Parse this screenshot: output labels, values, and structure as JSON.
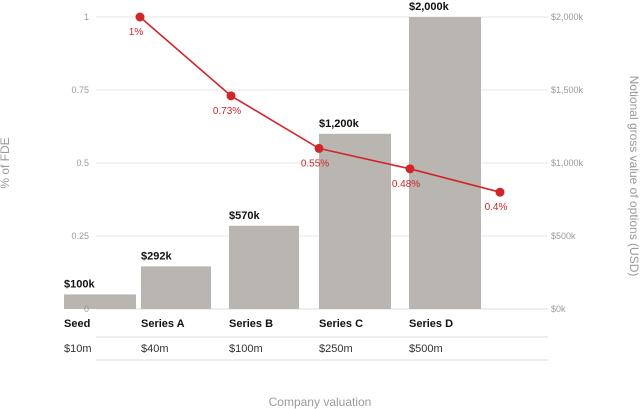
{
  "chart_data": {
    "type": "bar",
    "categories": [
      "Seed",
      "Series A",
      "Series B",
      "Series C",
      "Series D"
    ],
    "company_valuations": [
      "$10m",
      "$40m",
      "$100m",
      "$250m",
      "$500m"
    ],
    "xlabel": "Company valuation",
    "series": [
      {
        "kind": "bar",
        "axis": "right",
        "values": [
          100,
          292,
          570,
          1200,
          2000
        ],
        "value_labels": [
          "$100k",
          "$292k",
          "$570k",
          "$1,200k",
          "$2,000k"
        ]
      },
      {
        "kind": "line",
        "axis": "left",
        "values": [
          1,
          0.73,
          0.55,
          0.48,
          0.4
        ],
        "value_labels": [
          "1%",
          "0.73%",
          "0.55%",
          "0.48%",
          "0.4%"
        ]
      }
    ],
    "left_axis": {
      "label": "% of FDE",
      "ylim": [
        0,
        1
      ],
      "ticks": [
        0,
        0.25,
        0.5,
        0.75,
        1
      ],
      "tick_labels": [
        "0",
        "0.25",
        "0.5",
        "0.75",
        "1"
      ]
    },
    "right_axis": {
      "label": "Notional gross value of options (USD)",
      "ylim": [
        0,
        2000
      ],
      "ticks": [
        0,
        500,
        1000,
        1500,
        2000
      ],
      "tick_labels": [
        "$0k",
        "$500k",
        "$1,000k",
        "$1,500k",
        "$2,000k"
      ]
    },
    "grid": true,
    "colors": {
      "bar": "#b9b5b1",
      "line": "#d0262a",
      "grid": "#dddddd",
      "axis_text": "#9a9a9a"
    }
  }
}
